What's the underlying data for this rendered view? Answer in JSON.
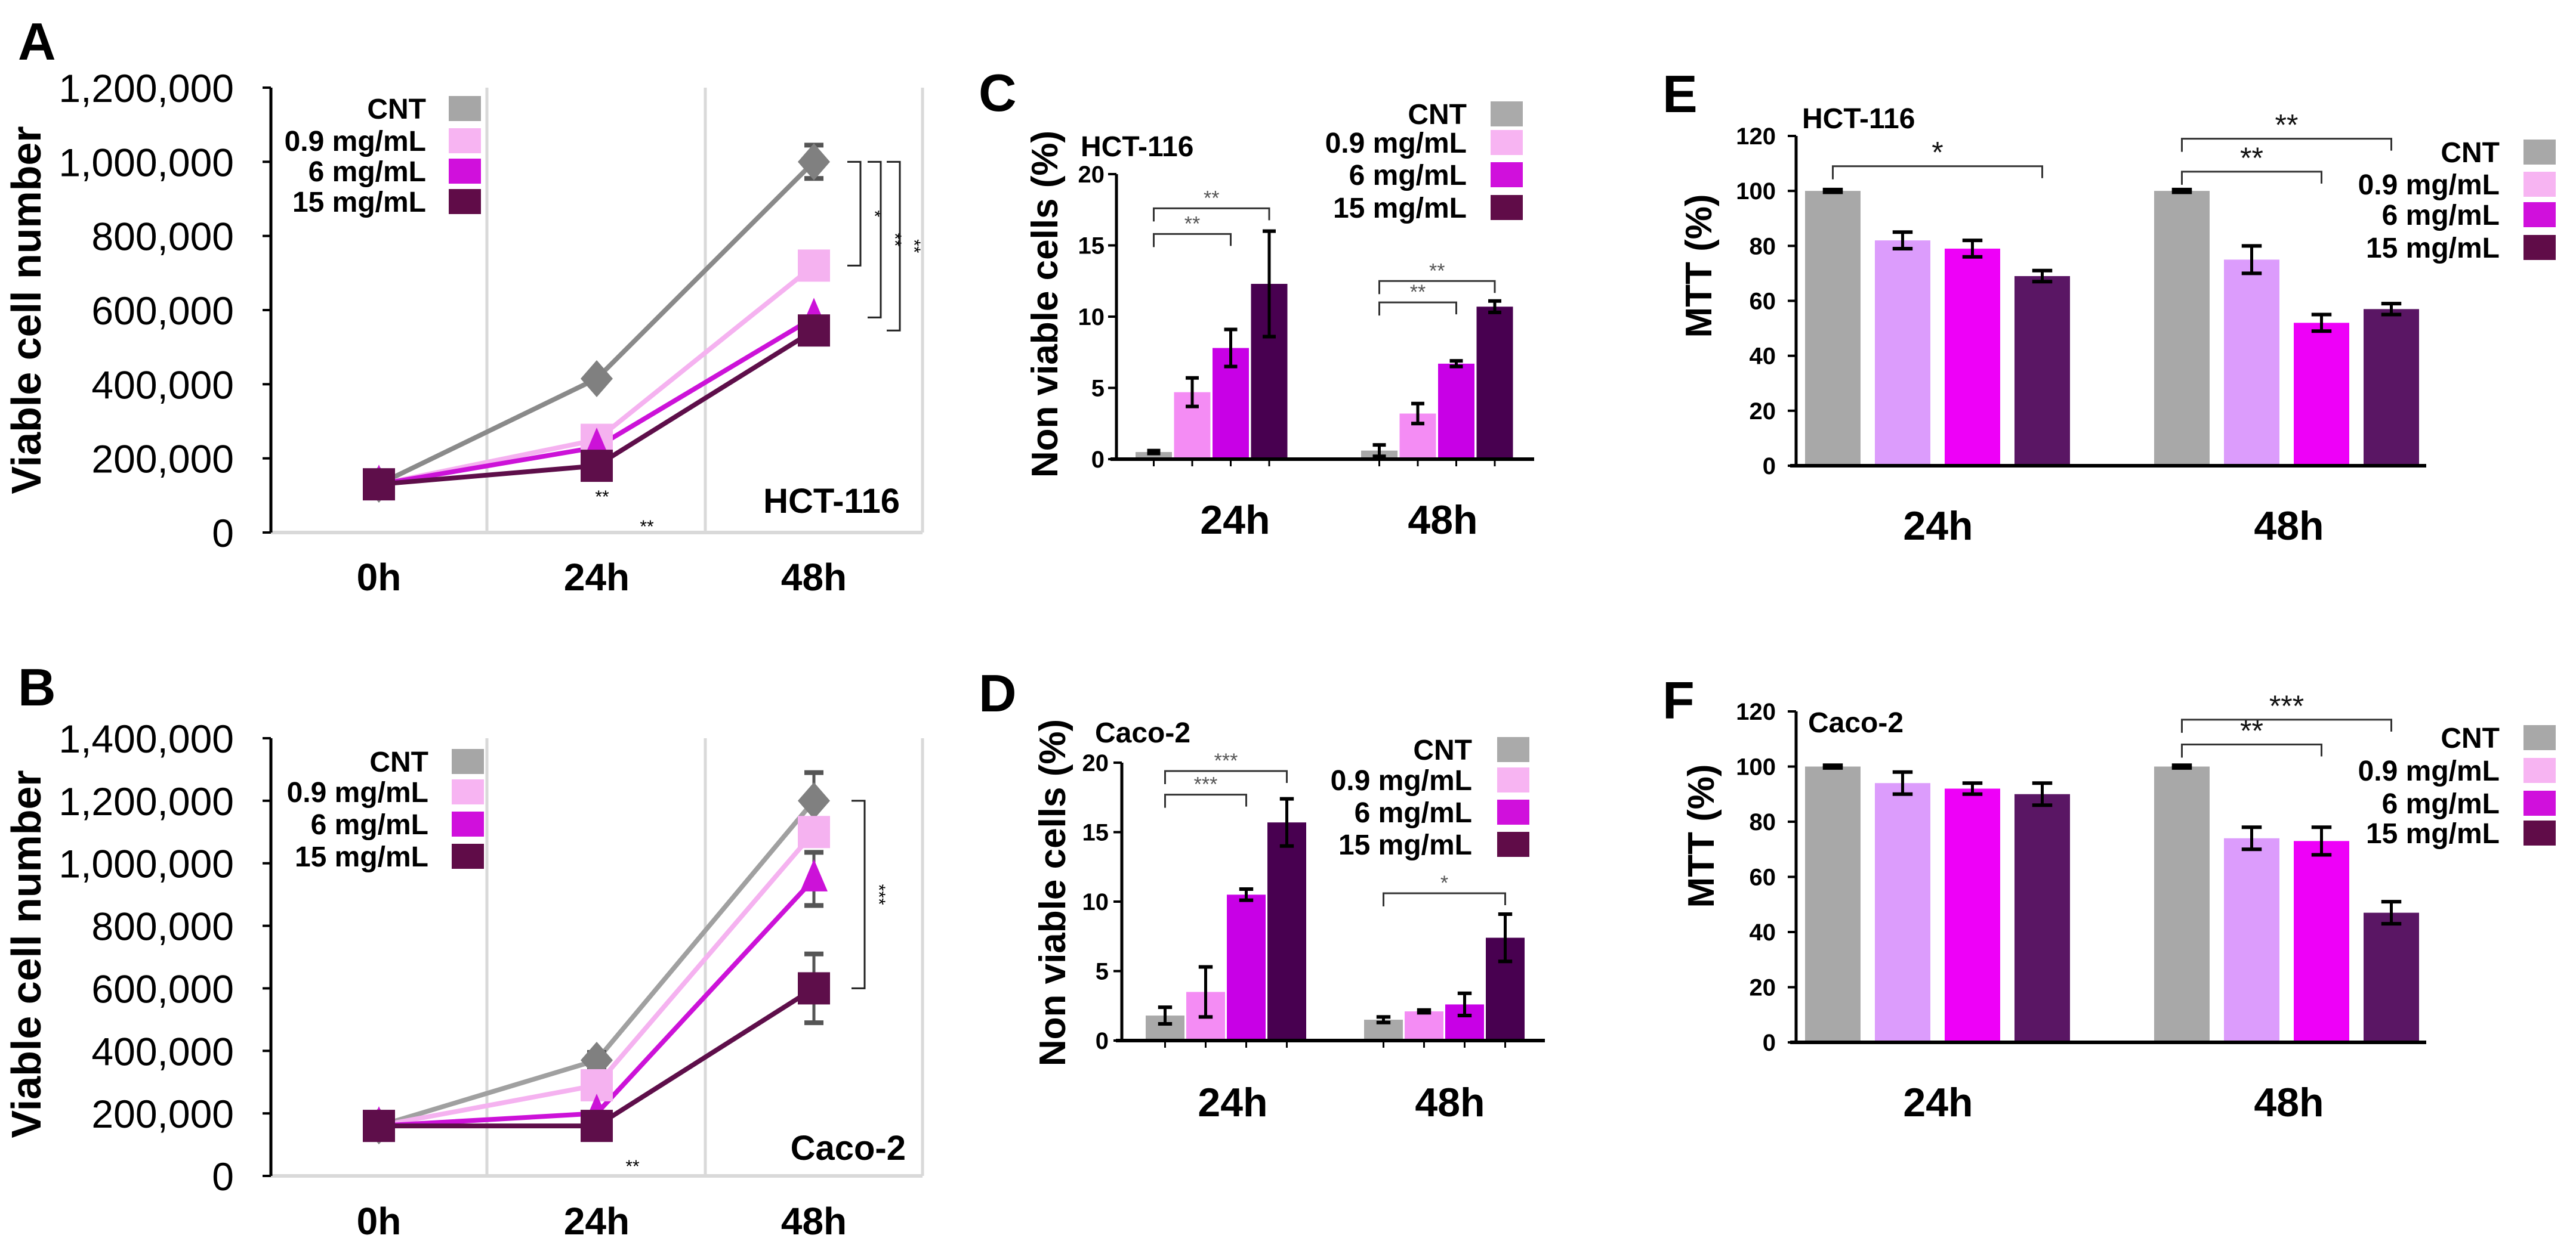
{
  "chart_data": [
    {
      "panel": "A",
      "type": "line",
      "subtitle": "HCT-116",
      "ylabel": "Viable cell number",
      "xlabel": "",
      "categories": [
        "0h",
        "24h",
        "48h"
      ],
      "ylim": [
        0,
        1200000
      ],
      "yticks": [
        0,
        200000,
        400000,
        600000,
        800000,
        1000000,
        1200000
      ],
      "ytick_labels": [
        "0",
        "200,000",
        "400,000",
        "600,000",
        "800,000",
        "1,000,000",
        "1,200,000"
      ],
      "grid": "vertical",
      "legend": "top-left",
      "series": [
        {
          "name": "CNT",
          "marker": "diamond",
          "color": "#8a8a8a",
          "legend_color": "#a6a6a6",
          "values": [
            130000,
            415000,
            1000000
          ],
          "errors": [
            0,
            10000,
            45000
          ]
        },
        {
          "name": "0.9 mg/mL",
          "marker": "square",
          "color": "#f5b2f0",
          "legend_color": "#f7b4f2",
          "values": [
            130000,
            250000,
            720000
          ],
          "errors": [
            0,
            0,
            0
          ]
        },
        {
          "name": "6 mg/mL",
          "marker": "triangle",
          "color": "#cc12d8",
          "legend_color": "#d010dc",
          "values": [
            130000,
            230000,
            580000
          ],
          "errors": [
            0,
            0,
            0
          ]
        },
        {
          "name": "15 mg/mL",
          "marker": "square",
          "color": "#5e0e4a",
          "legend_color": "#600c48",
          "values": [
            130000,
            180000,
            545000
          ],
          "errors": [
            0,
            0,
            0
          ]
        }
      ],
      "significance": [
        {
          "label": "*",
          "category": 2,
          "a": 0,
          "b": 1
        },
        {
          "label": "**",
          "category": 2,
          "a": 0,
          "b": 2
        },
        {
          "label": "**",
          "category": 2,
          "a": 0,
          "b": 3
        }
      ],
      "point_annotations": [
        {
          "label": "**",
          "category": 1,
          "series": 3
        },
        {
          "label": "**",
          "category": 1,
          "series": 2
        }
      ]
    },
    {
      "panel": "B",
      "type": "line",
      "subtitle": "Caco-2",
      "ylabel": "Viable cell number",
      "xlabel": "",
      "categories": [
        "0h",
        "24h",
        "48h"
      ],
      "ylim": [
        0,
        1400000
      ],
      "yticks": [
        0,
        200000,
        400000,
        600000,
        800000,
        1000000,
        1200000,
        1400000
      ],
      "ytick_labels": [
        "0",
        "200,000",
        "400,000",
        "600,000",
        "800,000",
        "1,000,000",
        "1,200,000",
        "1,400,000"
      ],
      "grid": "vertical",
      "legend": "top-left",
      "series": [
        {
          "name": "CNT",
          "marker": "diamond",
          "color": "#a0a0a0",
          "legend_color": "#a6a6a6",
          "values": [
            160000,
            370000,
            1200000
          ],
          "errors": [
            0,
            25000,
            90000
          ]
        },
        {
          "name": "0.9 mg/mL",
          "marker": "square",
          "color": "#f5b2f0",
          "legend_color": "#f7b4f2",
          "values": [
            160000,
            290000,
            1100000
          ],
          "errors": [
            0,
            0,
            0
          ]
        },
        {
          "name": "6 mg/mL",
          "marker": "triangle",
          "color": "#cc12d8",
          "legend_color": "#d010dc",
          "values": [
            160000,
            200000,
            950000
          ],
          "errors": [
            0,
            0,
            85000
          ]
        },
        {
          "name": "15 mg/mL",
          "marker": "square",
          "color": "#5e0e4a",
          "legend_color": "#600c48",
          "values": [
            160000,
            160000,
            600000
          ],
          "errors": [
            0,
            0,
            110000
          ]
        }
      ],
      "significance": [
        {
          "label": "***",
          "category": 2,
          "a": 0,
          "b": 3
        }
      ],
      "point_annotations": [
        {
          "label": "**",
          "category": 1,
          "series": 3
        }
      ]
    },
    {
      "panel": "C",
      "type": "bar",
      "subtitle": "HCT-116",
      "ylabel": "Non viable cells (%)",
      "xlabel": "",
      "categories": [
        "24h",
        "48h"
      ],
      "ylim": [
        0,
        20
      ],
      "yticks": [
        0,
        5,
        10,
        15,
        20
      ],
      "ytick_labels": [
        "0",
        "5",
        "10",
        "15",
        "20"
      ],
      "legend": "top-right",
      "series": [
        {
          "name": "CNT",
          "color": "#a9a9a9",
          "legend_color": "#aaaaaa",
          "values": [
            0.5,
            0.6
          ],
          "errors": [
            0.1,
            0.4
          ]
        },
        {
          "name": "0.9 mg/mL",
          "color": "#f48cf4",
          "legend_color": "#f7b4f2",
          "values": [
            4.7,
            3.2
          ],
          "errors": [
            1.0,
            0.7
          ]
        },
        {
          "name": "6 mg/mL",
          "color": "#c800e6",
          "legend_color": "#d010dc",
          "values": [
            7.8,
            6.7
          ],
          "errors": [
            1.3,
            0.2
          ]
        },
        {
          "name": "15 mg/mL",
          "color": "#480050",
          "legend_color": "#600c48",
          "values": [
            12.3,
            10.7
          ],
          "errors": [
            3.7,
            0.4
          ]
        }
      ],
      "significance": [
        {
          "label": "**",
          "category": 0,
          "a": 0,
          "b": 2
        },
        {
          "label": "**",
          "category": 0,
          "a": 0,
          "b": 3
        },
        {
          "label": "**",
          "category": 1,
          "a": 0,
          "b": 2
        },
        {
          "label": "**",
          "category": 1,
          "a": 0,
          "b": 3
        }
      ]
    },
    {
      "panel": "D",
      "type": "bar",
      "subtitle": "Caco-2",
      "ylabel": "Non viable cells (%)",
      "xlabel": "",
      "categories": [
        "24h",
        "48h"
      ],
      "ylim": [
        0,
        20
      ],
      "yticks": [
        0,
        5,
        10,
        15,
        20
      ],
      "ytick_labels": [
        "0",
        "5",
        "10",
        "15",
        "20"
      ],
      "legend": "top-right",
      "series": [
        {
          "name": "CNT",
          "color": "#a9a9a9",
          "legend_color": "#aaaaaa",
          "values": [
            1.8,
            1.5
          ],
          "errors": [
            0.6,
            0.2
          ]
        },
        {
          "name": "0.9 mg/mL",
          "color": "#f48cf4",
          "legend_color": "#f7b4f2",
          "values": [
            3.5,
            2.1
          ],
          "errors": [
            1.8,
            0.1
          ]
        },
        {
          "name": "6 mg/mL",
          "color": "#c800e6",
          "legend_color": "#d010dc",
          "values": [
            10.5,
            2.6
          ],
          "errors": [
            0.4,
            0.8
          ]
        },
        {
          "name": "15 mg/mL",
          "color": "#480050",
          "legend_color": "#600c48",
          "values": [
            15.7,
            7.4
          ],
          "errors": [
            1.7,
            1.7
          ]
        }
      ],
      "significance": [
        {
          "label": "***",
          "category": 0,
          "a": 0,
          "b": 2
        },
        {
          "label": "***",
          "category": 0,
          "a": 0,
          "b": 3
        },
        {
          "label": "*",
          "category": 1,
          "a": 0,
          "b": 3
        }
      ]
    },
    {
      "panel": "E",
      "type": "bar",
      "subtitle": "HCT-116",
      "ylabel": "MTT (%)",
      "xlabel": "",
      "categories": [
        "24h",
        "48h"
      ],
      "ylim": [
        0,
        120
      ],
      "yticks": [
        0,
        20,
        40,
        60,
        80,
        100,
        120
      ],
      "ytick_labels": [
        "0",
        "20",
        "40",
        "60",
        "80",
        "100",
        "120"
      ],
      "legend": "top-right",
      "series": [
        {
          "name": "CNT",
          "color": "#a8a8a8",
          "legend_color": "#a8a8a8",
          "values": [
            100,
            100
          ],
          "errors": [
            0.5,
            0.5
          ]
        },
        {
          "name": "0.9 mg/mL",
          "color": "#dc9cfc",
          "legend_color": "#f7b4f2",
          "values": [
            82,
            75
          ],
          "errors": [
            3,
            5
          ]
        },
        {
          "name": "6 mg/mL",
          "color": "#ee00f8",
          "legend_color": "#d010dc",
          "values": [
            79,
            52
          ],
          "errors": [
            3,
            3
          ]
        },
        {
          "name": "15 mg/mL",
          "color": "#5a1664",
          "legend_color": "#600c48",
          "values": [
            69,
            57
          ],
          "errors": [
            2,
            2
          ]
        }
      ],
      "significance": [
        {
          "label": "*",
          "category": 0,
          "a": 0,
          "b": 3
        },
        {
          "label": "**",
          "category": 1,
          "a": 0,
          "b": 2
        },
        {
          "label": "**",
          "category": 1,
          "a": 0,
          "b": 3
        }
      ]
    },
    {
      "panel": "F",
      "type": "bar",
      "subtitle": "Caco-2",
      "ylabel": "MTT (%)",
      "xlabel": "",
      "categories": [
        "24h",
        "48h"
      ],
      "ylim": [
        0,
        120
      ],
      "yticks": [
        0,
        20,
        40,
        60,
        80,
        100,
        120
      ],
      "ytick_labels": [
        "0",
        "20",
        "40",
        "60",
        "80",
        "100",
        "120"
      ],
      "legend": "top-right",
      "series": [
        {
          "name": "CNT",
          "color": "#a8a8a8",
          "legend_color": "#a8a8a8",
          "values": [
            100,
            100
          ],
          "errors": [
            0.5,
            0.5
          ]
        },
        {
          "name": "0.9 mg/mL",
          "color": "#dc9cfc",
          "legend_color": "#f7b4f2",
          "values": [
            94,
            74
          ],
          "errors": [
            4,
            4
          ]
        },
        {
          "name": "6 mg/mL",
          "color": "#ee00f8",
          "legend_color": "#d010dc",
          "values": [
            92,
            73
          ],
          "errors": [
            2,
            5
          ]
        },
        {
          "name": "15 mg/mL",
          "color": "#5a1664",
          "legend_color": "#600c48",
          "values": [
            90,
            47
          ],
          "errors": [
            4,
            4
          ]
        }
      ],
      "significance": [
        {
          "label": "**",
          "category": 1,
          "a": 0,
          "b": 2
        },
        {
          "label": "***",
          "category": 1,
          "a": 0,
          "b": 3
        }
      ]
    }
  ]
}
